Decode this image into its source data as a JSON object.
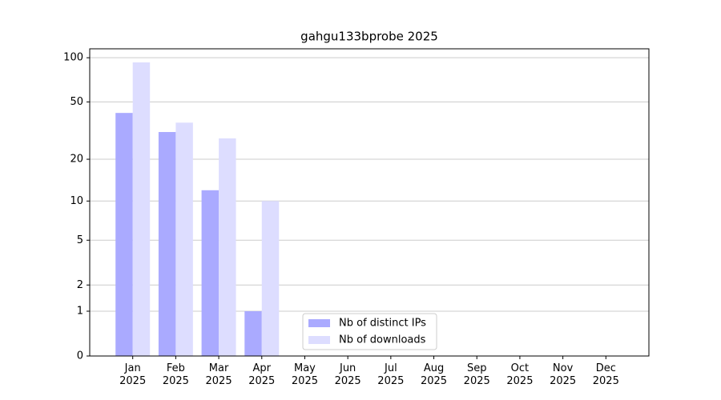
{
  "chart_data": {
    "type": "bar",
    "title": "gahgu133bprobe 2025",
    "categories": [
      "Jan 2025",
      "Feb 2025",
      "Mar 2025",
      "Apr 2025",
      "May 2025",
      "Jun 2025",
      "Jul 2025",
      "Aug 2025",
      "Sep 2025",
      "Oct 2025",
      "Nov 2025",
      "Dec 2025"
    ],
    "series": [
      {
        "name": "Nb of distinct IPs",
        "color": "#aaaaff",
        "values": [
          42,
          31,
          12,
          1,
          null,
          null,
          null,
          null,
          null,
          null,
          null,
          null
        ]
      },
      {
        "name": "Nb of downloads",
        "color": "#ddddff",
        "values": [
          93,
          36,
          28,
          10,
          null,
          null,
          null,
          null,
          null,
          null,
          null,
          null
        ]
      }
    ],
    "yscale": "log1p",
    "ylim": [
      0,
      115
    ],
    "yticks": [
      0,
      1,
      2,
      5,
      10,
      20,
      50,
      100
    ],
    "grid": true,
    "legend": "lower center"
  }
}
